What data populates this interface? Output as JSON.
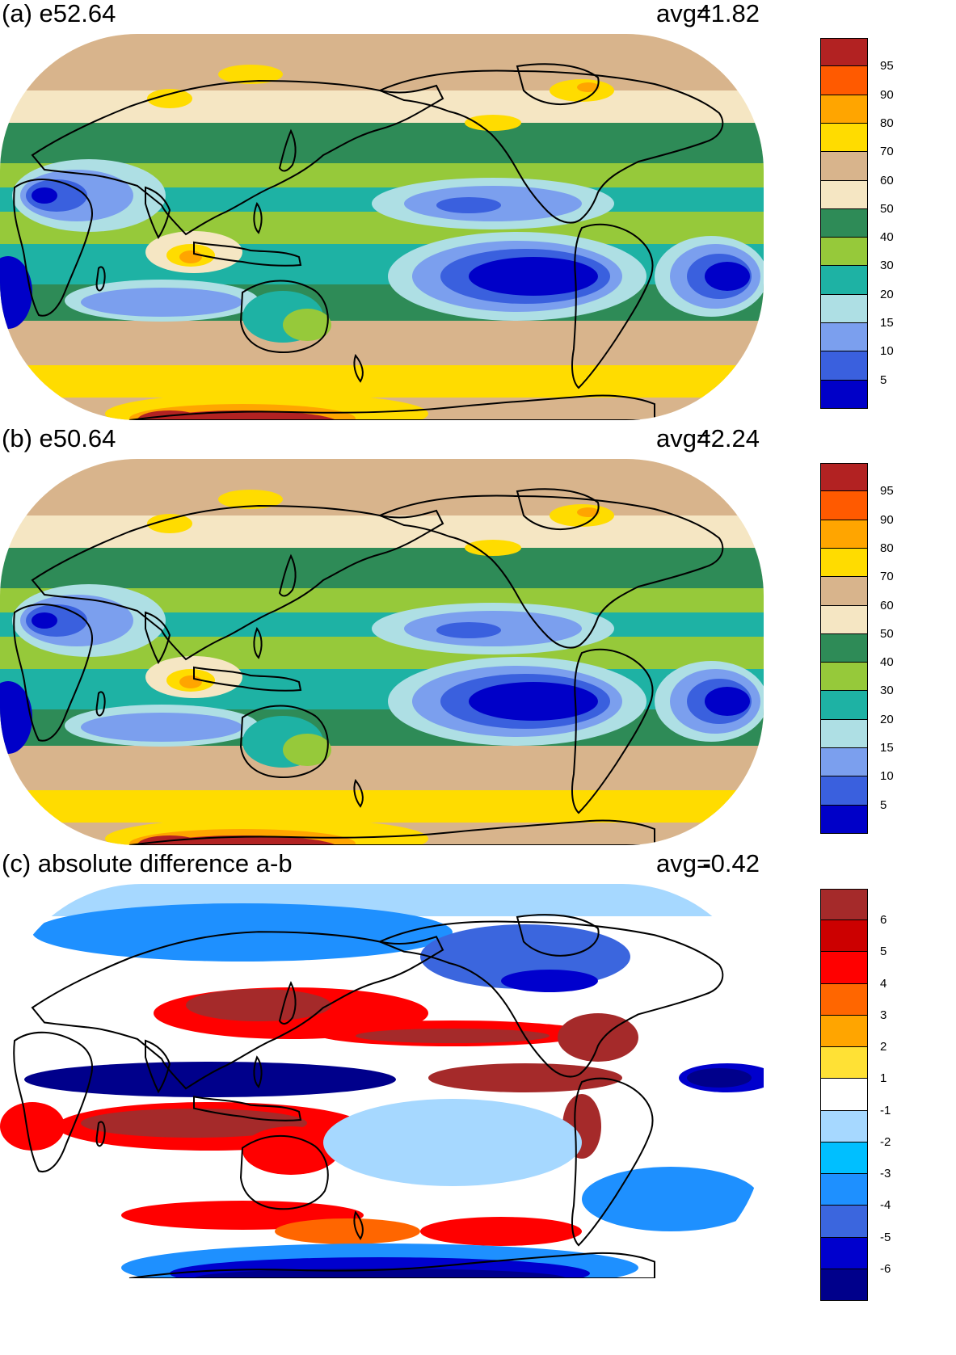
{
  "palette_fields": [
    "#0000c8",
    "#3a60de",
    "#7b9fee",
    "#aedfe4",
    "#1eb2a4",
    "#96c93a",
    "#2e8b57",
    "#f5e6c3",
    "#d8b48c",
    "#ffdc00",
    "#ffa500",
    "#ff5a00",
    "#b22222"
  ],
  "palette_diff": [
    "#00008b",
    "#0000cd",
    "#3b66de",
    "#1e90ff",
    "#00bfff",
    "#a6d8ff",
    "#ffffff",
    "#ffe135",
    "#ffa500",
    "#ff6600",
    "#ff0000",
    "#cc0000",
    "#a52a2a"
  ],
  "panels": [
    {
      "id": "a",
      "title": "(a) e52.64",
      "avg_label": "avg=",
      "avg_value": "41.82",
      "colorbar_labels": [
        "95",
        "90",
        "80",
        "70",
        "60",
        "50",
        "40",
        "30",
        "20",
        "15",
        "10",
        "5"
      ],
      "palette": "fields"
    },
    {
      "id": "b",
      "title": "(b) e50.64",
      "avg_label": "avg=",
      "avg_value": "42.24",
      "colorbar_labels": [
        "95",
        "90",
        "80",
        "70",
        "60",
        "50",
        "40",
        "30",
        "20",
        "15",
        "10",
        "5"
      ],
      "palette": "fields"
    },
    {
      "id": "c",
      "title": "(c) absolute difference a-b",
      "avg_label": "avg=",
      "avg_value": "-0.42",
      "colorbar_labels": [
        "6",
        "5",
        "4",
        "3",
        "2",
        "1",
        "-1",
        "-2",
        "-3",
        "-4",
        "-5",
        "-6"
      ],
      "palette": "diff"
    }
  ]
}
